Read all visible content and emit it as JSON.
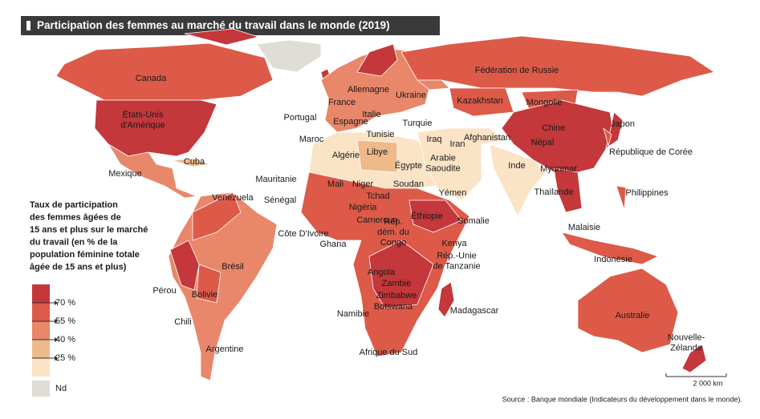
{
  "title": "Participation des femmes au marché du travail dans le monde (2019)",
  "legend": {
    "title": [
      "Taux de participation",
      "des femmes âgées de",
      "15 ans et plus sur le marché",
      "du travail (en % de la",
      "population féminine totale",
      "âgée de 15 ans et plus)"
    ],
    "thresholds": [
      "70 %",
      "55 %",
      "40 %",
      "25 %"
    ],
    "colors": [
      "#c4373a",
      "#dd5a48",
      "#e8876a",
      "#f0b98a",
      "#fbe3c6"
    ],
    "nd": "Nd",
    "nd_color": "#e0dcd6"
  },
  "labels": [
    "Canada",
    [
      "États-Unis",
      "d'Amérique"
    ],
    "Mexique",
    "Cuba",
    "Venezuela",
    "Brésil",
    "Pérou",
    "Bolivie",
    "Chili",
    "Argentine",
    "Portugal",
    "France",
    "Espagne",
    "Allemagne",
    "Italie",
    "Ukraine",
    "Turquie",
    "Tunisie",
    "Maroc",
    "Algérie",
    "Libye",
    "Égypte",
    "Mauritanie",
    "Sénégal",
    "Mali",
    "Niger",
    "Tchad",
    "Soudan",
    "Nigéria",
    "Cameroun",
    "Côte D'Ivoire",
    "Ghana",
    [
      "Rép.",
      "dém. du",
      "Congo"
    ],
    "Éthiopie",
    "Somalie",
    "Kenya",
    [
      "Rép.-Unie",
      "de Tanzanie"
    ],
    "Angola",
    "Zambie",
    "Zimbabwe",
    "Botswana",
    "Namibie",
    "Afrique du Sud",
    "Madagascar",
    "Kazakhstan",
    "Fédération de Russie",
    "Mongolie",
    "Chine",
    "Népal",
    "Iraq",
    "Iran",
    "Afghanistan",
    [
      "Arabie",
      "Saoudite"
    ],
    "Yémen",
    "Inde",
    "Myanmar",
    "Thaïlande",
    "Japon",
    "République de Corée",
    "Philippines",
    "Malaisie",
    "Indonésie",
    "Australie",
    [
      "Nouvelle-",
      "Zélande"
    ]
  ],
  "scale": "2 000 km",
  "source": "Source : Banque mondiale (Indicateurs du développement dans le monde)."
}
